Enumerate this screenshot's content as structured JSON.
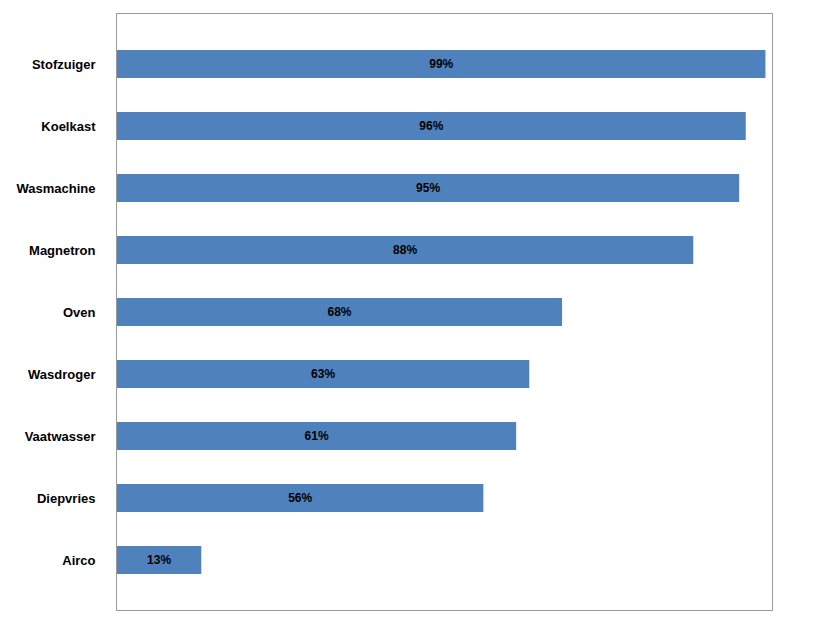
{
  "chart_data": {
    "type": "bar",
    "orientation": "horizontal",
    "categories": [
      "Stofzuiger",
      "Koelkast",
      "Wasmachine",
      "Magnetron",
      "Oven",
      "Wasdroger",
      "Vaatwasser",
      "Diepvries",
      "Airco"
    ],
    "values": [
      99,
      96,
      95,
      88,
      68,
      63,
      61,
      56,
      13
    ],
    "value_labels": [
      "99%",
      "96%",
      "95%",
      "88%",
      "68%",
      "63%",
      "61%",
      "56%",
      "13%"
    ],
    "color": "#4f81bd",
    "xlim": [
      0,
      100
    ],
    "data_labels": true,
    "tick_labels": "y"
  }
}
